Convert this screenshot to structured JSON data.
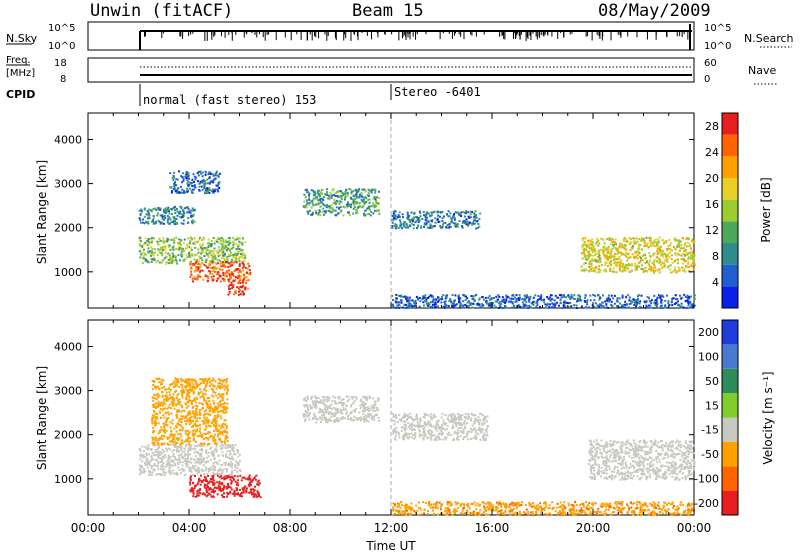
{
  "header": {
    "station": "Unwin (fitACF)",
    "beam": "Beam 15",
    "date": "08/May/2009"
  },
  "status_panels": {
    "nsky": {
      "label": "N.Sky",
      "top_tick": "10^5",
      "bottom_tick": "10^0"
    },
    "nsearch": {
      "label": "N.Search",
      "top_tick": "10^5",
      "bottom_tick": "10^0"
    },
    "freq": {
      "label_line1": "Freq.",
      "label_line2": "[MHz]",
      "top_tick": "18",
      "bottom_tick": "8"
    },
    "nave": {
      "label": "Nave",
      "top_tick": "60",
      "bottom_tick": "0"
    },
    "cpid": {
      "label": "CPID",
      "mode1": "normal (fast stereo) 153",
      "mode2": "Stereo -6401"
    }
  },
  "chart_data": [
    {
      "type": "heatmap",
      "panel": "power",
      "xlabel": "Time UT",
      "ylabel": "Slant Range [km]",
      "xlim": [
        0,
        24
      ],
      "ylim": [
        180,
        4600
      ],
      "x_ticks": [
        "00:00",
        "04:00",
        "08:00",
        "12:00",
        "16:00",
        "20:00",
        "00:00"
      ],
      "y_ticks": [
        1000,
        2000,
        3000,
        4000
      ],
      "colorbar": {
        "label": "Power [dB]",
        "ticks": [
          4,
          8,
          12,
          16,
          20,
          24,
          28
        ],
        "range": [
          0,
          30
        ],
        "colors": [
          "#0b20e8",
          "#1f5fd0",
          "#2e8c8a",
          "#4ca85a",
          "#9acd32",
          "#e8d028",
          "#ffa200",
          "#ff6400",
          "#e81e1e"
        ]
      },
      "regions": [
        {
          "t": [
            2.0,
            6.2
          ],
          "r": [
            1200,
            1800
          ],
          "level": 14
        },
        {
          "t": [
            4.0,
            6.4
          ],
          "r": [
            800,
            1250
          ],
          "level": 26
        },
        {
          "t": [
            5.5,
            6.3
          ],
          "r": [
            500,
            800
          ],
          "level": 28
        },
        {
          "t": [
            3.2,
            5.2
          ],
          "r": [
            2800,
            3300
          ],
          "level": 6
        },
        {
          "t": [
            2.0,
            4.2
          ],
          "r": [
            2100,
            2500
          ],
          "level": 8
        },
        {
          "t": [
            8.5,
            11.5
          ],
          "r": [
            2300,
            2900
          ],
          "level": 10
        },
        {
          "t": [
            12.0,
            15.5
          ],
          "r": [
            2000,
            2400
          ],
          "level": 7
        },
        {
          "t": [
            19.5,
            24.0
          ],
          "r": [
            1000,
            1800
          ],
          "level": 18
        },
        {
          "t": [
            12.0,
            24.0
          ],
          "r": [
            200,
            500
          ],
          "level": 5
        }
      ]
    },
    {
      "type": "heatmap",
      "panel": "velocity",
      "xlabel": "Time UT",
      "ylabel": "Slant Range [km]",
      "xlim": [
        0,
        24
      ],
      "ylim": [
        180,
        4600
      ],
      "x_ticks": [
        "00:00",
        "04:00",
        "08:00",
        "12:00",
        "16:00",
        "20:00",
        "00:00"
      ],
      "y_ticks": [
        1000,
        2000,
        3000,
        4000
      ],
      "colorbar": {
        "label": "Velocity [m s⁻¹]",
        "ticks": [
          "200",
          "100",
          "50",
          "15",
          "-15",
          "-50",
          "-100",
          "-200"
        ],
        "colors": [
          "#1e3cdc",
          "#4a7ad0",
          "#2e8c5a",
          "#7fcc2a",
          "#c8c8c0",
          "#ffa200",
          "#ff6400",
          "#e81e1e"
        ]
      },
      "regions": [
        {
          "t": [
            2.0,
            6.0
          ],
          "r": [
            1100,
            1800
          ],
          "level": 0
        },
        {
          "t": [
            4.0,
            6.8
          ],
          "r": [
            600,
            1100
          ],
          "level": -150
        },
        {
          "t": [
            2.5,
            5.5
          ],
          "r": [
            1800,
            3300
          ],
          "level": -30
        },
        {
          "t": [
            8.5,
            11.5
          ],
          "r": [
            2300,
            2900
          ],
          "level": 0
        },
        {
          "t": [
            12.0,
            15.8
          ],
          "r": [
            1900,
            2500
          ],
          "level": 0
        },
        {
          "t": [
            19.8,
            24.0
          ],
          "r": [
            1000,
            1900
          ],
          "level": 0
        },
        {
          "t": [
            12.0,
            24.0
          ],
          "r": [
            200,
            500
          ],
          "level": -40
        }
      ]
    }
  ]
}
